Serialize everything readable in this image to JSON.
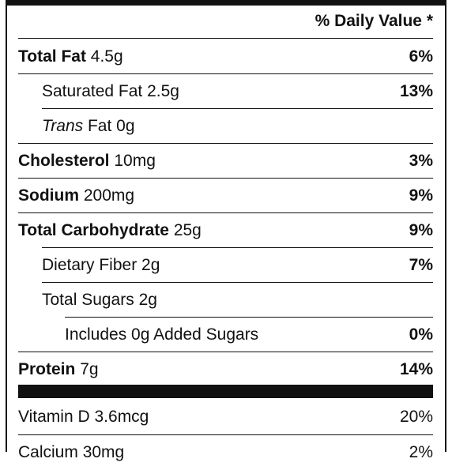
{
  "header": {
    "daily_value": "% Daily Value *"
  },
  "rows": [
    {
      "name": "Total Fat",
      "amount": "4.5g",
      "dv": "6%"
    },
    {
      "name": "Saturated Fat",
      "amount": "2.5g",
      "dv": "13%"
    },
    {
      "name_italic": "Trans",
      "name": "Fat",
      "amount": "0g",
      "dv": ""
    },
    {
      "name": "Cholesterol",
      "amount": "10mg",
      "dv": "3%"
    },
    {
      "name": "Sodium",
      "amount": "200mg",
      "dv": "9%"
    },
    {
      "name": "Total Carbohydrate",
      "amount": "25g",
      "dv": "9%"
    },
    {
      "name": "Dietary Fiber",
      "amount": "2g",
      "dv": "7%"
    },
    {
      "name": "Total Sugars",
      "amount": "2g",
      "dv": ""
    },
    {
      "name": "Includes 0g Added Sugars",
      "dv": "0%"
    },
    {
      "name": "Protein",
      "amount": "7g",
      "dv": "14%"
    }
  ],
  "vitamins": [
    {
      "name": "Vitamin D",
      "amount": "3.6mcg",
      "dv": "20%"
    },
    {
      "name": "Calcium",
      "amount": "30mg",
      "dv": "2%"
    }
  ],
  "colors": {
    "ink": "#111111",
    "background": "#ffffff"
  }
}
